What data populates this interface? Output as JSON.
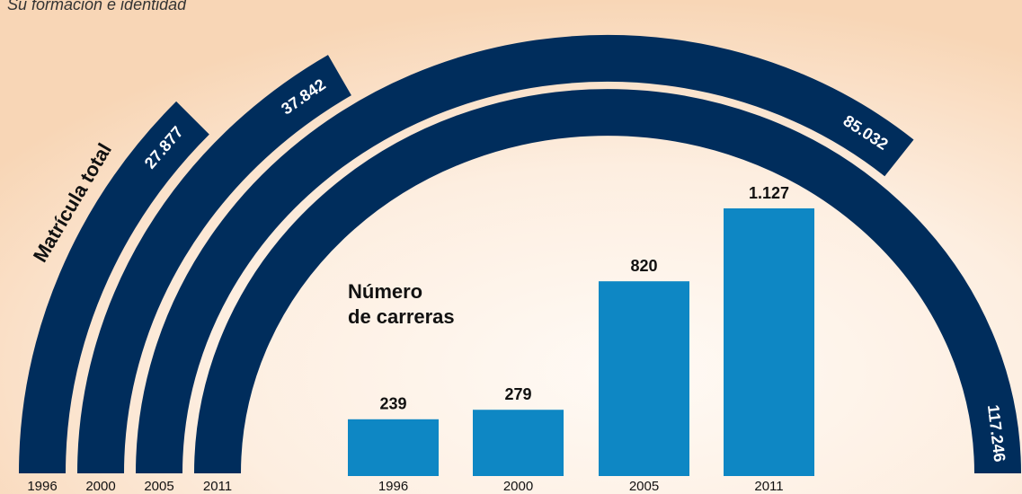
{
  "subtitle": "Su formación e identidad",
  "chart_data": [
    {
      "type": "arc",
      "title": "Matrícula total",
      "categories": [
        "1996",
        "2000",
        "2005",
        "2011"
      ],
      "values": [
        27877,
        37842,
        85032,
        117246
      ],
      "value_labels": [
        "27.877",
        "37.842",
        "85.032",
        "117.246"
      ],
      "color": "#002d5c"
    },
    {
      "type": "bar",
      "title": "Número de carreras",
      "categories": [
        "1996",
        "2000",
        "2005",
        "2011"
      ],
      "values": [
        239,
        279,
        820,
        1127
      ],
      "value_labels": [
        "239",
        "279",
        "820",
        "1.127"
      ],
      "color": "#0e87c4"
    }
  ]
}
